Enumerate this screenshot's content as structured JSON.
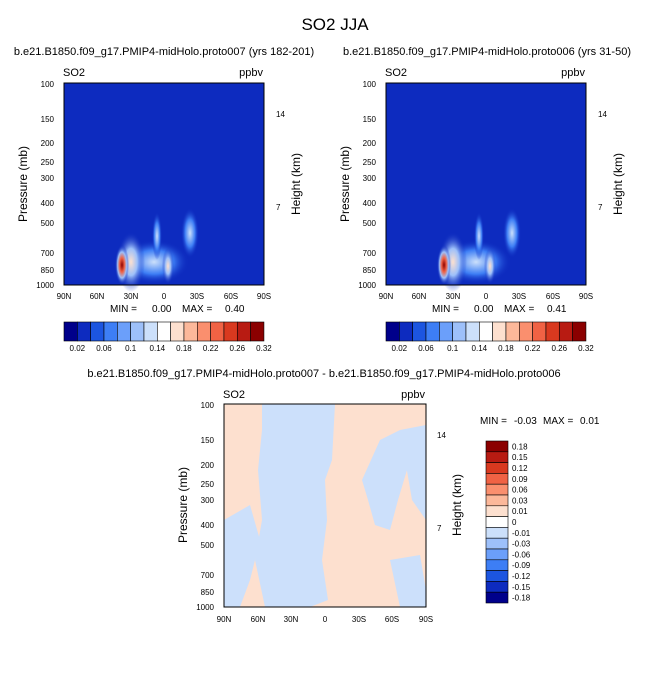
{
  "figure": {
    "title": "SO2 JJA"
  },
  "chart_data": [
    {
      "type": "heatmap",
      "title": "b.e21.B1850.f09_g17.PMIP4-midHolo.proto007 (yrs 182-201)",
      "left_label": "SO2",
      "units": "ppbv",
      "ylabel": "Pressure (mb)",
      "ylabel_right": "Height (km)",
      "x_ticks": [
        "90N",
        "60N",
        "30N",
        "0",
        "30S",
        "60S",
        "90S"
      ],
      "y_ticks": [
        "100",
        "150",
        "200",
        "250",
        "300",
        "400",
        "500",
        "700",
        "850",
        "1000"
      ],
      "y_ticks_right": [
        "14",
        "7"
      ],
      "ylim": [
        1000,
        100
      ],
      "y_scale": "log",
      "stats": {
        "min_label": "MIN =",
        "min": "0.00",
        "max_label": "MAX =",
        "max": "0.40"
      },
      "features": [
        {
          "lat": 35,
          "p": 760,
          "value": 0.4
        },
        {
          "lat": 20,
          "p": 800,
          "value": 0.12
        },
        {
          "lat": 0,
          "p": 820,
          "value": 0.18
        },
        {
          "lat": -10,
          "p": 430,
          "value": 0.1
        }
      ]
    },
    {
      "type": "heatmap",
      "title": "b.e21.B1850.f09_g17.PMIP4-midHolo.proto006 (yrs 31-50)",
      "left_label": "SO2",
      "units": "ppbv",
      "ylabel": "Pressure (mb)",
      "ylabel_right": "Height (km)",
      "x_ticks": [
        "90N",
        "60N",
        "30N",
        "0",
        "30S",
        "60S",
        "90S"
      ],
      "y_ticks": [
        "100",
        "150",
        "200",
        "250",
        "300",
        "400",
        "500",
        "700",
        "850",
        "1000"
      ],
      "y_ticks_right": [
        "14",
        "7"
      ],
      "ylim": [
        1000,
        100
      ],
      "y_scale": "log",
      "stats": {
        "min_label": "MIN =",
        "min": "0.00",
        "max_label": "MAX =",
        "max": "0.41"
      },
      "features": [
        {
          "lat": 35,
          "p": 760,
          "value": 0.41
        },
        {
          "lat": 20,
          "p": 800,
          "value": 0.12
        },
        {
          "lat": 0,
          "p": 820,
          "value": 0.18
        },
        {
          "lat": -10,
          "p": 430,
          "value": 0.1
        }
      ]
    },
    {
      "type": "heatmap",
      "title": "b.e21.B1850.f09_g17.PMIP4-midHolo.proto007 - b.e21.B1850.f09_g17.PMIP4-midHolo.proto006",
      "left_label": "SO2",
      "units": "ppbv",
      "ylabel": "Pressure (mb)",
      "ylabel_right": "Height (km)",
      "x_ticks": [
        "90N",
        "60N",
        "30N",
        "0",
        "30S",
        "60S",
        "90S"
      ],
      "y_ticks": [
        "100",
        "150",
        "200",
        "250",
        "300",
        "400",
        "500",
        "700",
        "850",
        "1000"
      ],
      "y_ticks_right": [
        "14",
        "7"
      ],
      "ylim": [
        1000,
        100
      ],
      "y_scale": "log",
      "stats": {
        "min_label": "MIN =",
        "min": "-0.03",
        "max_label": "MAX =",
        "max": "0.01"
      },
      "regions": [
        {
          "lat_range": [
            "90N",
            "55N"
          ],
          "p_range": [
            1000,
            100
          ],
          "value": "0.01"
        },
        {
          "lat_range": [
            "50N",
            "0"
          ],
          "p_range": [
            1000,
            100
          ],
          "value": "-0.01"
        },
        {
          "lat_range": [
            "0",
            "60S"
          ],
          "p_range": [
            1000,
            100
          ],
          "value": "0.01"
        },
        {
          "lat_range": [
            "60S",
            "90S"
          ],
          "p_range": [
            600,
            100
          ],
          "value": "-0.01"
        }
      ]
    }
  ],
  "colorbar_abs": {
    "labels": [
      "0.02",
      "0.06",
      "0.1",
      "0.14",
      "0.18",
      "0.22",
      "0.26",
      "0.32"
    ],
    "colors": [
      "#00008b",
      "#0d2bbf",
      "#1c55e0",
      "#3d7ef5",
      "#6b9ffa",
      "#9dc0fa",
      "#cce0fb",
      "#ffffff",
      "#fde0cf",
      "#fcb89a",
      "#fa8f6e",
      "#f06244",
      "#d9391f",
      "#b81b12",
      "#8b0000"
    ]
  },
  "colorbar_diff": {
    "labels": [
      "0.18",
      "0.15",
      "0.12",
      "0.09",
      "0.06",
      "0.03",
      "0.01",
      "0",
      "-0.01",
      "-0.03",
      "-0.06",
      "-0.09",
      "-0.12",
      "-0.15",
      "-0.18"
    ],
    "colors": [
      "#8b0000",
      "#b81b12",
      "#d9391f",
      "#f06244",
      "#fa8f6e",
      "#fcb89a",
      "#fde0cf",
      "#ffffff",
      "#cce0fb",
      "#9dc0fa",
      "#6b9ffa",
      "#3d7ef5",
      "#1c55e0",
      "#0d2bbf",
      "#00008b"
    ]
  }
}
